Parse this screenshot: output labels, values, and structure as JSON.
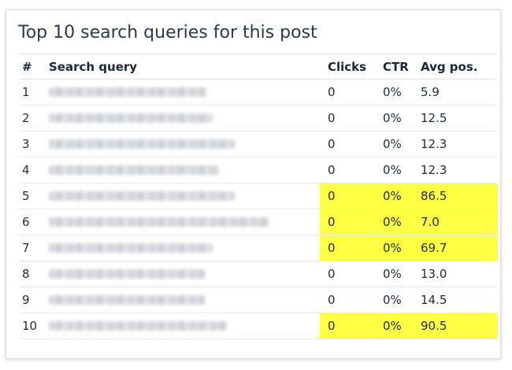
{
  "title": "Top 10 search queries for this post",
  "columns": {
    "num": "#",
    "query": "Search query",
    "clicks": "Clicks",
    "ctr": "CTR",
    "avg_pos": "Avg pos."
  },
  "highlight_color": "#ffff44",
  "rows": [
    {
      "num": "1",
      "clicks": "0",
      "ctr": "0%",
      "avg_pos": "5.9",
      "highlighted": false
    },
    {
      "num": "2",
      "clicks": "0",
      "ctr": "0%",
      "avg_pos": "12.5",
      "highlighted": false
    },
    {
      "num": "3",
      "clicks": "0",
      "ctr": "0%",
      "avg_pos": "12.3",
      "highlighted": false
    },
    {
      "num": "4",
      "clicks": "0",
      "ctr": "0%",
      "avg_pos": "12.3",
      "highlighted": false
    },
    {
      "num": "5",
      "clicks": "0",
      "ctr": "0%",
      "avg_pos": "86.5",
      "highlighted": true
    },
    {
      "num": "6",
      "clicks": "0",
      "ctr": "0%",
      "avg_pos": "7.0",
      "highlighted": true
    },
    {
      "num": "7",
      "clicks": "0",
      "ctr": "0%",
      "avg_pos": "69.7",
      "highlighted": true
    },
    {
      "num": "8",
      "clicks": "0",
      "ctr": "0%",
      "avg_pos": "13.0",
      "highlighted": false
    },
    {
      "num": "9",
      "clicks": "0",
      "ctr": "0%",
      "avg_pos": "14.5",
      "highlighted": false
    },
    {
      "num": "10",
      "clicks": "0",
      "ctr": "0%",
      "avg_pos": "90.5",
      "highlighted": true
    }
  ]
}
